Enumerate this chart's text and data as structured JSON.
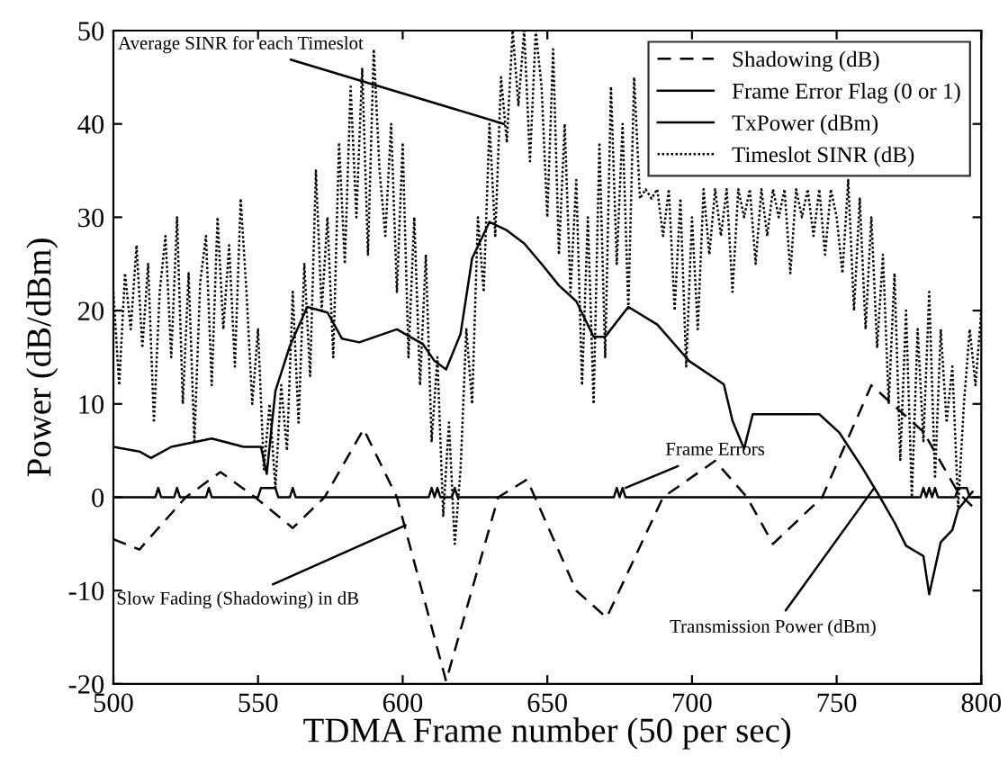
{
  "chart_data": {
    "type": "line",
    "xlabel": "TDMA Frame number (50 per sec)",
    "ylabel": "Power (dB/dBm)",
    "xlim": [
      500,
      800
    ],
    "xticks": [
      500,
      550,
      600,
      650,
      700,
      750,
      800
    ],
    "ylim": [
      -20,
      50
    ],
    "yticks": [
      -20,
      -10,
      0,
      10,
      20,
      30,
      40,
      50
    ],
    "grid": false,
    "legend": "top right",
    "marker": "none",
    "series": [
      {
        "name": "Shadowing (dB)",
        "color": "#000000",
        "line_style": "dashed",
        "x": [
          500,
          509,
          525,
          537,
          549,
          562,
          573,
          586.5,
          598,
          615,
          633,
          643,
          660,
          670.5,
          690,
          708,
          719,
          728,
          745,
          762,
          780,
          792,
          797
        ],
        "values": [
          -4.5,
          -5.6,
          0,
          2.7,
          0,
          -3.3,
          0,
          7.3,
          0,
          -19.7,
          0,
          1.9,
          -10,
          -12.9,
          0,
          3.9,
          0,
          -5,
          0,
          12,
          7,
          0.5,
          -1
        ]
      },
      {
        "name": "Frame Error Flag (0 or 1)",
        "color": "#000000",
        "line_style": "solid",
        "x": [
          500,
          514.5,
          515.5,
          516.5,
          521,
          522,
          523,
          532,
          533,
          534,
          550,
          551,
          556,
          557,
          561,
          562,
          563,
          609,
          610,
          611,
          612,
          613,
          617,
          618,
          619,
          673,
          674,
          675,
          676,
          677,
          678,
          779,
          780,
          781,
          782,
          783,
          784,
          785,
          786,
          791,
          792,
          795,
          796,
          800
        ],
        "values": [
          0,
          0,
          1,
          0,
          0,
          1,
          0,
          0,
          1,
          0,
          0,
          1,
          1,
          0,
          0,
          1,
          0,
          0,
          1,
          0,
          1,
          0,
          0,
          1,
          0,
          0,
          1,
          0,
          1,
          0,
          0,
          0,
          1,
          0,
          1,
          0,
          1,
          0,
          0,
          0,
          1,
          1,
          0,
          0
        ]
      },
      {
        "name": "TxPower (dBm)",
        "color": "#000000",
        "line_style": "solid",
        "x": [
          500,
          509,
          513,
          520,
          534,
          545,
          551,
          553,
          556,
          561,
          567,
          574,
          579,
          585,
          598,
          607,
          611,
          615,
          620,
          624,
          630,
          636,
          642,
          648,
          654,
          660,
          666,
          670,
          678,
          688,
          699,
          711,
          714,
          718,
          721,
          744,
          751,
          759,
          765,
          770,
          774,
          780,
          782,
          786,
          790,
          792,
          797
        ],
        "values": [
          5.4,
          4.9,
          4.2,
          5.4,
          6.3,
          5.4,
          5.4,
          2.5,
          11.4,
          16.2,
          20.4,
          19.8,
          17,
          16.6,
          18,
          16.4,
          14.6,
          13.7,
          17.5,
          25.6,
          29.5,
          28.6,
          27.2,
          25,
          22.7,
          21,
          17.2,
          17.2,
          20.4,
          18.5,
          14.6,
          12.1,
          8.2,
          5.2,
          8.9,
          8.9,
          6.9,
          3.1,
          0,
          -2.7,
          -5.2,
          -6.3,
          -10.4,
          -4.8,
          -3.5,
          -1.3,
          0.6
        ]
      },
      {
        "name": "Timeslot SINR (dB)",
        "color": "#000000",
        "line_style": "dotted",
        "x": [
          500,
          502,
          504,
          506,
          508,
          510,
          512,
          514,
          516,
          518,
          520,
          522,
          524,
          526,
          528,
          530,
          532,
          534,
          536,
          538,
          540,
          542,
          544,
          546,
          548,
          550,
          552,
          554,
          556,
          558,
          560,
          562,
          564,
          566,
          568,
          570,
          572,
          574,
          576,
          578,
          580,
          582,
          584,
          586,
          588,
          590,
          592,
          594,
          596,
          598,
          600,
          602,
          604,
          606,
          608,
          610,
          612,
          614,
          616,
          618,
          620,
          622,
          624,
          626,
          628,
          630,
          632,
          634,
          636,
          638,
          640,
          642,
          644,
          646,
          648,
          650,
          652,
          654,
          656,
          658,
          660,
          662,
          664,
          666,
          668,
          670,
          672,
          674,
          676,
          678,
          680,
          682,
          684,
          686,
          688,
          690,
          692,
          694,
          696,
          698,
          700,
          702,
          704,
          706,
          708,
          710,
          712,
          714,
          716,
          718,
          720,
          722,
          724,
          726,
          728,
          730,
          732,
          734,
          736,
          738,
          740,
          742,
          744,
          746,
          748,
          750,
          752,
          754,
          756,
          758,
          760,
          762,
          764,
          766,
          768,
          770,
          772,
          774,
          776,
          778,
          780,
          782,
          784,
          786,
          788,
          790,
          792,
          794,
          796,
          798,
          800
        ],
        "values": [
          22,
          12,
          24,
          18,
          27,
          16,
          25,
          8,
          22,
          28,
          15,
          30,
          10,
          24,
          6,
          23,
          28,
          12,
          30,
          18,
          27,
          14,
          32,
          22,
          10,
          18,
          3,
          10,
          1,
          12,
          5,
          22,
          8,
          25,
          13,
          35,
          20,
          30,
          15,
          38,
          25,
          44,
          30,
          46,
          26,
          48,
          35,
          28,
          40,
          22,
          38,
          15,
          30,
          12,
          26,
          6,
          15,
          -2,
          8,
          -5,
          3,
          18,
          10,
          30,
          22,
          40,
          28,
          45,
          38,
          50,
          42,
          50,
          36,
          50,
          44,
          30,
          48,
          26,
          40,
          22,
          34,
          12,
          30,
          10,
          38,
          15,
          44,
          25,
          40,
          20,
          45,
          32,
          33,
          32,
          33,
          28,
          33,
          20,
          32,
          14,
          30,
          18,
          33,
          26,
          33,
          28,
          33,
          22,
          33,
          30,
          33,
          25,
          33,
          28,
          33,
          30,
          33,
          24,
          33,
          30,
          33,
          28,
          33,
          26,
          33,
          30,
          24,
          34,
          20,
          32,
          18,
          30,
          16,
          26,
          10,
          24,
          4,
          20,
          0,
          18,
          6,
          22,
          2,
          18,
          8,
          14,
          -1,
          10,
          18,
          12,
          20
        ]
      }
    ],
    "annotations": [
      {
        "text": "Average SINR for each Timeslot",
        "x": 635,
        "y": 40
      },
      {
        "text": "Slow Fading (Shadowing) in dB",
        "x": 601,
        "y": -3
      },
      {
        "text": "Frame Errors",
        "x": 677,
        "y": 1
      },
      {
        "text": "Transmission Power (dBm)",
        "x": 763,
        "y": 1
      }
    ]
  }
}
